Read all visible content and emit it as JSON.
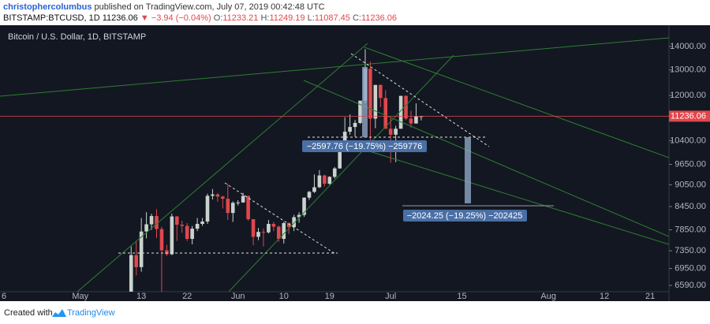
{
  "header": {
    "author": "christophercolumbus",
    "published": "published on TradingView.com, July 07, 2019 00:42:48 UTC",
    "symbol": "BITSTAMP:BTCUSD, 1D",
    "last": "11236.06",
    "change": "▼ −3.94 (−0.04%)",
    "ohlc": [
      {
        "label": "O:",
        "value": "11233.21"
      },
      {
        "label": "H:",
        "value": "11249.19"
      },
      {
        "label": "L:",
        "value": "11087.45"
      },
      {
        "label": "C:",
        "value": "11236.06"
      }
    ]
  },
  "footer": {
    "created": "Created with",
    "brand": "TradingView"
  },
  "chart_data": {
    "type": "candlestick",
    "title": "Bitcoin / U.S. Dollar, 1D, BITSTAMP",
    "log_scale": true,
    "up_color": "#c9d3cc",
    "down_color": "#e0474c",
    "categories": [
      "6",
      null,
      null,
      null,
      null,
      null,
      null,
      null,
      null,
      null,
      null,
      null,
      null,
      null,
      null,
      "May",
      null,
      null,
      null,
      null,
      null,
      null,
      null,
      null,
      null,
      null,
      null,
      "13",
      null,
      null,
      null,
      null,
      null,
      null,
      null,
      null,
      "22",
      null,
      null,
      null,
      null,
      null,
      null,
      null,
      null,
      null,
      "Jun",
      null,
      null,
      null,
      null,
      null,
      null,
      null,
      null,
      "10",
      null,
      null,
      null,
      null,
      null,
      null,
      null,
      null,
      "19",
      null,
      null,
      null,
      null,
      null,
      null,
      null,
      null,
      null,
      null,
      null,
      "Jul",
      null,
      null,
      null,
      null,
      null,
      null,
      null,
      null,
      null,
      null,
      null,
      null,
      null,
      "15",
      null,
      null,
      null,
      null,
      null,
      null,
      null,
      null,
      null,
      null,
      null,
      null,
      null,
      null,
      null,
      null,
      "Aug",
      null,
      null,
      null,
      null,
      null,
      null,
      null,
      null,
      null,
      null,
      "12",
      null,
      null,
      null,
      null,
      null,
      null,
      null,
      null,
      "21",
      null,
      null,
      null
    ],
    "open": [
      null,
      null,
      null,
      null,
      null,
      null,
      null,
      null,
      null,
      null,
      null,
      null,
      null,
      null,
      null,
      null,
      null,
      null,
      null,
      null,
      null,
      null,
      null,
      null,
      null,
      6350,
      7250,
      6980,
      7810,
      7990,
      8200,
      7870,
      7360,
      7270,
      8190,
      7980,
      7950,
      7630,
      7880,
      8000,
      8060,
      8740,
      8780,
      8720,
      8660,
      8280,
      8550,
      8560,
      8740,
      8120,
      7680,
      7800,
      7790,
      8000,
      7930,
      7630,
      8020,
      7920,
      8170,
      8230,
      8690,
      8850,
      8980,
      9320,
      9080,
      9280,
      9530,
      10200,
      10700,
      10860,
      11000,
      11800,
      13050,
      11150,
      12400,
      11900,
      10800,
      10600,
      10800,
      11980,
      11150,
      10980,
      11233.21,
      null,
      null,
      null,
      null,
      null,
      null,
      null,
      null,
      null,
      null,
      null,
      null,
      null,
      null,
      null,
      null,
      null,
      null,
      null,
      null,
      null,
      null,
      null,
      null,
      null,
      null,
      null,
      null,
      null,
      null,
      null,
      null,
      null,
      null,
      null,
      null,
      null,
      null,
      null,
      null,
      null,
      null,
      null,
      null,
      null,
      null,
      null,
      null
    ],
    "high": [
      null,
      null,
      null,
      null,
      null,
      null,
      null,
      null,
      null,
      null,
      null,
      null,
      null,
      null,
      null,
      null,
      null,
      null,
      null,
      null,
      null,
      null,
      null,
      null,
      null,
      7450,
      7580,
      8150,
      8300,
      8260,
      8380,
      7930,
      7490,
      8260,
      8200,
      8080,
      8020,
      7950,
      8150,
      8150,
      8800,
      8930,
      8820,
      8740,
      9080,
      8590,
      8620,
      8820,
      8740,
      8120,
      7900,
      7880,
      8100,
      8050,
      7960,
      8050,
      8040,
      8230,
      8300,
      8700,
      8880,
      9350,
      9480,
      9340,
      9300,
      9570,
      10200,
      11200,
      11300,
      11100,
      11800,
      13880,
      13350,
      12400,
      12420,
      12200,
      11200,
      10900,
      11980,
      12000,
      11430,
      11700,
      11249.19,
      null,
      null,
      null,
      null,
      null,
      null,
      null,
      null,
      null,
      null,
      null,
      null,
      null,
      null,
      null,
      null,
      null,
      null,
      null,
      null,
      null,
      null,
      null,
      null,
      null,
      null,
      null,
      null,
      null,
      null,
      null,
      null,
      null,
      null,
      null,
      null,
      null,
      null,
      null,
      null,
      null,
      null,
      null,
      null,
      null,
      null,
      null,
      null
    ],
    "low": [
      null,
      null,
      null,
      null,
      null,
      null,
      null,
      null,
      null,
      null,
      null,
      null,
      null,
      null,
      null,
      null,
      null,
      null,
      null,
      null,
      null,
      null,
      null,
      null,
      null,
      6320,
      6800,
      6880,
      7640,
      7850,
      7650,
      6400,
      7230,
      7250,
      7580,
      7780,
      7580,
      7500,
      7820,
      7950,
      8000,
      8640,
      8580,
      8400,
      8100,
      8050,
      8480,
      8550,
      8080,
      7480,
      7600,
      7450,
      7760,
      7820,
      7560,
      7520,
      7750,
      7820,
      8030,
      8180,
      8630,
      8820,
      8960,
      9000,
      9050,
      9230,
      9520,
      10050,
      10600,
      10530,
      10960,
      11700,
      10400,
      10820,
      11560,
      10800,
      9700,
      9720,
      10800,
      11100,
      10840,
      10980,
      11087.45,
      null,
      null,
      null,
      null,
      null,
      null,
      null,
      null,
      null,
      null,
      null,
      null,
      null,
      null,
      null,
      null,
      null,
      null,
      null,
      null,
      null,
      null,
      null,
      null,
      null,
      null,
      null,
      null,
      null,
      null,
      null,
      null,
      null,
      null,
      null,
      null,
      null,
      null,
      null,
      null,
      null,
      null,
      null,
      null,
      null,
      null,
      null,
      null
    ],
    "close": [
      null,
      null,
      null,
      null,
      null,
      null,
      null,
      null,
      null,
      null,
      null,
      null,
      null,
      null,
      null,
      null,
      null,
      null,
      null,
      null,
      null,
      null,
      null,
      null,
      null,
      7250,
      6980,
      7810,
      7990,
      8200,
      7870,
      7360,
      7270,
      8190,
      7980,
      7950,
      7630,
      7880,
      8000,
      8060,
      8740,
      8780,
      8720,
      8660,
      8280,
      8550,
      8560,
      8740,
      8120,
      7680,
      7800,
      7790,
      8000,
      7930,
      7630,
      8020,
      7920,
      8170,
      8230,
      8690,
      8850,
      8980,
      9320,
      9080,
      9280,
      9530,
      10200,
      10700,
      10860,
      11000,
      11800,
      13050,
      11150,
      12400,
      11900,
      10800,
      10600,
      10800,
      11980,
      11150,
      10980,
      11240,
      11236.06,
      null,
      null,
      null,
      null,
      null,
      null,
      null,
      null,
      null,
      null,
      null,
      null,
      null,
      null,
      null,
      null,
      null,
      null,
      null,
      null,
      null,
      null,
      null,
      null,
      null,
      null,
      null,
      null,
      null,
      null,
      null,
      null,
      null,
      null,
      null,
      null,
      null,
      null,
      null,
      null,
      null,
      null,
      null,
      null,
      null,
      null,
      null,
      null
    ],
    "ylim": [
      6460,
      14970
    ],
    "yticks": [
      {
        "value": 14000,
        "label": "14000.00"
      },
      {
        "value": 13000,
        "label": "13000.00"
      },
      {
        "value": 12000,
        "label": "12000.00"
      },
      {
        "value": 10400,
        "label": "10400.00"
      },
      {
        "value": 9650,
        "label": "9650.00"
      },
      {
        "value": 9050,
        "label": "9050.00"
      },
      {
        "value": 8450,
        "label": "8450.00"
      },
      {
        "value": 7850,
        "label": "7850.00"
      },
      {
        "value": 7350,
        "label": "7350.00"
      },
      {
        "value": 6950,
        "label": "6950.00"
      },
      {
        "value": 6590,
        "label": "6590.00"
      }
    ],
    "last_price": 11236.06,
    "annotations": [
      "−2597.76 (−19.75%) −259776",
      "−2024.25 (−19.25%) −202425"
    ]
  }
}
